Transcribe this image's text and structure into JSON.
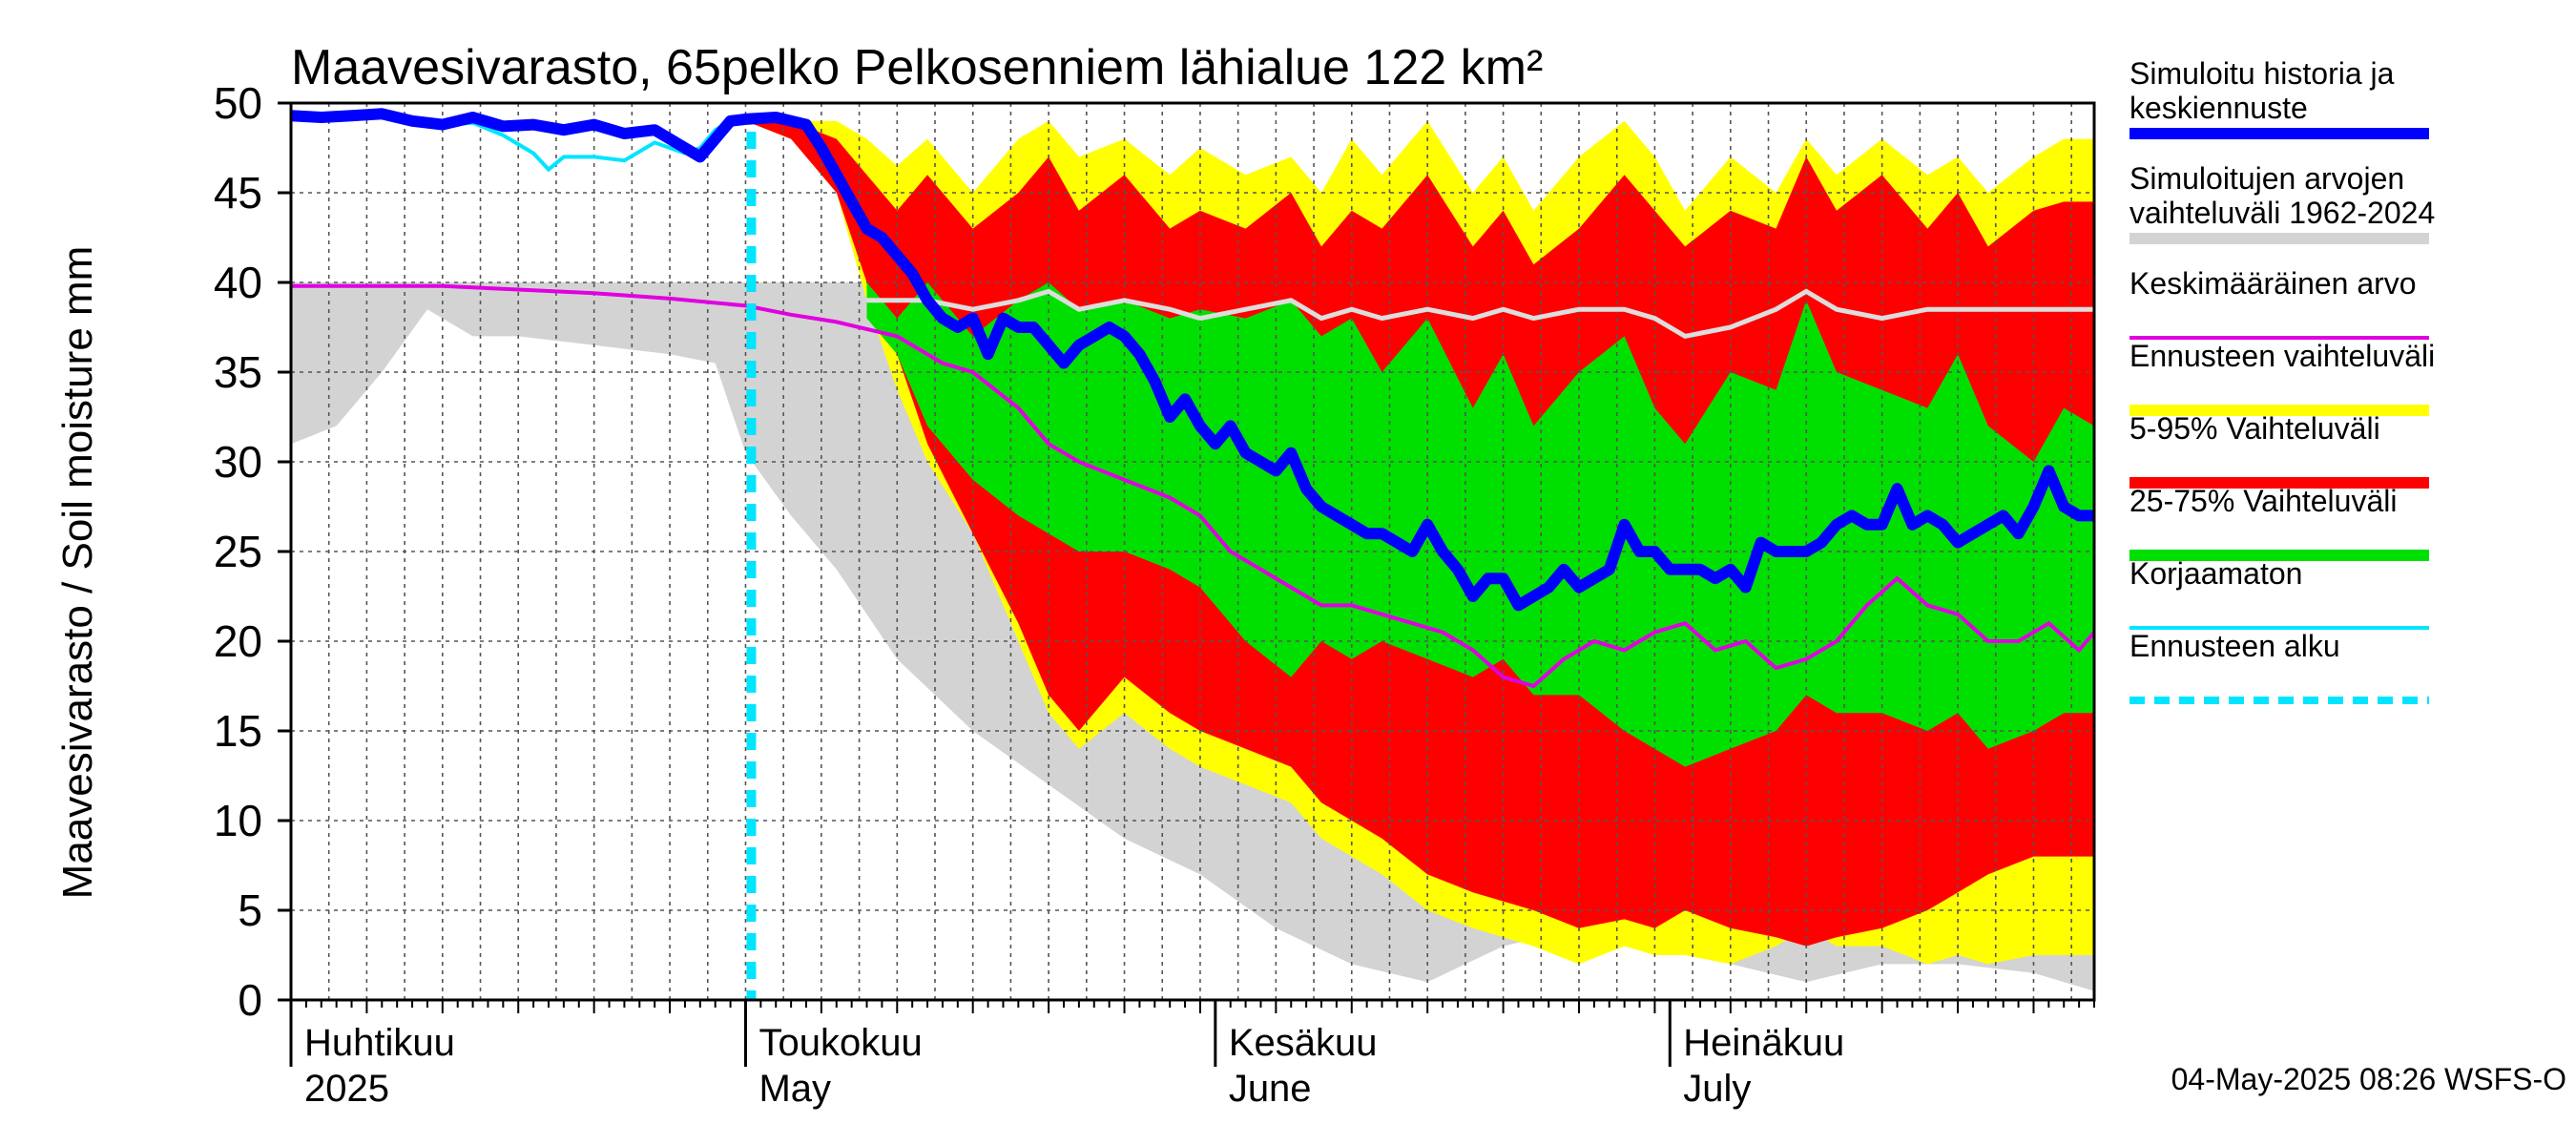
{
  "chart_data": {
    "type": "area",
    "title": "Maavesivarasto, 65pelko Pelkosenniem lähialue 122 km²",
    "ylabel": "Maavesivarasto / Soil moisture   mm",
    "ylim": [
      0,
      50
    ],
    "yticks": [
      0,
      5,
      10,
      15,
      20,
      25,
      30,
      35,
      40,
      45,
      50
    ],
    "x_start": "2025-03-31",
    "x_days": 119,
    "forecast_start_day": 30,
    "month_labels": [
      {
        "day": 0,
        "fi": "Huhtikuu",
        "en": "2025"
      },
      {
        "day": 30,
        "fi": "Toukokuu",
        "en": "May"
      },
      {
        "day": 61,
        "fi": "Kesäkuu",
        "en": "June"
      },
      {
        "day": 91,
        "fi": "Heinäkuu",
        "en": "July"
      }
    ],
    "colors": {
      "historical_range": "#d3d3d3",
      "forecast_range": "#ffff00",
      "p5_95": "#ff0000",
      "p25_75": "#00e000",
      "simulated": "#0000ff",
      "mean": "#e000e0",
      "uncorrected": "#00e5ff",
      "forecast_start": "#00e5ff",
      "median_line": "#dddddd"
    },
    "series": [
      {
        "name": "historical_range",
        "knots_day": [
          0,
          3,
          6,
          9,
          12,
          15,
          20,
          25,
          28,
          30,
          33,
          36,
          40,
          45,
          50,
          55,
          60,
          65,
          70,
          75,
          80,
          85,
          90,
          95,
          100,
          105,
          110,
          115,
          119
        ],
        "upper": [
          40,
          40,
          40,
          40,
          40,
          40,
          40,
          40,
          40,
          40,
          40,
          40,
          40,
          39.5,
          39,
          39,
          39,
          39,
          39,
          39,
          39,
          39,
          39,
          39,
          39,
          39,
          39,
          39,
          39
        ],
        "lower": [
          31,
          32,
          35,
          38.5,
          37,
          37,
          36.5,
          36,
          35.5,
          30.5,
          27,
          24,
          19,
          15,
          12,
          9,
          7,
          4,
          2,
          1,
          3,
          4,
          4,
          2,
          1,
          2,
          2,
          1.5,
          0.5
        ]
      },
      {
        "name": "forecast_range",
        "knots_day": [
          30,
          33,
          36,
          38,
          40,
          42,
          45,
          48,
          50,
          52,
          55,
          58,
          60,
          63,
          66,
          68,
          70,
          72,
          75,
          78,
          80,
          82,
          85,
          88,
          90,
          92,
          95,
          98,
          100,
          102,
          105,
          108,
          110,
          112,
          115,
          117,
          119
        ],
        "upper": [
          49,
          49,
          49,
          48,
          46.5,
          48,
          45,
          48,
          49,
          47,
          48,
          46,
          47.5,
          46,
          47,
          45,
          48,
          46,
          49,
          45,
          47,
          44,
          47,
          49,
          47,
          44,
          47,
          45,
          48,
          46,
          48,
          46,
          47,
          45,
          47,
          48,
          48
        ],
        "lower": [
          49,
          48,
          45,
          39,
          34,
          30,
          26,
          20,
          16,
          14,
          16,
          14,
          13,
          12,
          11,
          9,
          8,
          7,
          5,
          4,
          3.5,
          3,
          2,
          3,
          2.5,
          2.5,
          2,
          3,
          4,
          3,
          3,
          2,
          2.5,
          2,
          2.5,
          2.5,
          2.5
        ]
      },
      {
        "name": "p5_95",
        "knots_day": [
          30,
          33,
          36,
          38,
          40,
          42,
          45,
          48,
          50,
          52,
          55,
          58,
          60,
          63,
          66,
          68,
          70,
          72,
          75,
          78,
          80,
          82,
          85,
          88,
          90,
          92,
          95,
          98,
          100,
          102,
          105,
          108,
          110,
          112,
          115,
          117,
          119
        ],
        "upper": [
          49,
          49,
          48,
          46,
          44,
          46,
          43,
          45,
          47,
          44,
          46,
          43,
          44,
          43,
          45,
          42,
          44,
          43,
          46,
          42,
          44,
          41,
          43,
          46,
          44,
          42,
          44,
          43,
          47,
          44,
          46,
          43,
          45,
          42,
          44,
          44.5,
          44.5
        ],
        "lower": [
          49,
          48,
          45,
          40,
          36,
          31,
          26,
          21,
          17,
          15,
          18,
          16,
          15,
          14,
          13,
          11,
          10,
          9,
          7,
          6,
          5.5,
          5,
          4,
          4.5,
          4,
          5,
          4,
          3.5,
          3,
          3.5,
          4,
          5,
          6,
          7,
          8,
          8,
          8
        ]
      },
      {
        "name": "p25_75",
        "knots_day": [
          38,
          40,
          42,
          45,
          48,
          50,
          52,
          55,
          58,
          60,
          63,
          66,
          68,
          70,
          72,
          75,
          78,
          80,
          82,
          85,
          88,
          90,
          92,
          95,
          98,
          100,
          102,
          105,
          108,
          110,
          112,
          115,
          117,
          119
        ],
        "upper": [
          40,
          38,
          40,
          37,
          39,
          40,
          38.5,
          39,
          38,
          38.5,
          38,
          39,
          37,
          38,
          35,
          38,
          33,
          36,
          32,
          35,
          37,
          33,
          31,
          35,
          34,
          39,
          35,
          34,
          33,
          36,
          32,
          30,
          33,
          32
        ],
        "lower": [
          38,
          36,
          32,
          29,
          27,
          26,
          25,
          25,
          24,
          23,
          20,
          18,
          20,
          19,
          20,
          19,
          18,
          19,
          17,
          17,
          15,
          14,
          13,
          14,
          15,
          17,
          16,
          16,
          15,
          16,
          14,
          15,
          16,
          16
        ]
      },
      {
        "name": "median_line",
        "knots_day": [
          38,
          40,
          42,
          45,
          48,
          50,
          52,
          55,
          58,
          60,
          63,
          66,
          68,
          70,
          72,
          75,
          78,
          80,
          82,
          85,
          88,
          90,
          92,
          95,
          98,
          100,
          102,
          105,
          108,
          110,
          112,
          115,
          117,
          119
        ],
        "values": [
          39,
          39,
          39,
          38.5,
          39,
          39.5,
          38.5,
          39,
          38.5,
          38,
          38.5,
          39,
          38,
          38.5,
          38,
          38.5,
          38,
          38.5,
          38,
          38.5,
          38.5,
          38,
          37,
          37.5,
          38.5,
          39.5,
          38.5,
          38,
          38.5,
          38.5,
          38.5,
          38.5,
          38.5,
          38.5
        ]
      },
      {
        "name": "mean",
        "knots_day": [
          0,
          5,
          10,
          15,
          20,
          25,
          30,
          33,
          36,
          40,
          43,
          45,
          48,
          50,
          52,
          55,
          58,
          60,
          62,
          64,
          66,
          68,
          70,
          72,
          74,
          76,
          78,
          80,
          82,
          84,
          86,
          88,
          90,
          92,
          94,
          96,
          98,
          100,
          102,
          104,
          106,
          108,
          110,
          112,
          114,
          116,
          118,
          119
        ],
        "values": [
          39.8,
          39.8,
          39.8,
          39.6,
          39.4,
          39.1,
          38.7,
          38.2,
          37.8,
          37,
          35.5,
          35,
          33,
          31,
          30,
          29,
          28,
          27,
          25,
          24,
          23,
          22,
          22,
          21.5,
          21,
          20.5,
          19.5,
          18,
          17.5,
          19,
          20,
          19.5,
          20.5,
          21,
          19.5,
          20,
          18.5,
          19,
          20,
          22,
          23.5,
          22,
          21.5,
          20,
          20,
          21,
          19.5,
          20.5
        ]
      },
      {
        "name": "simulated",
        "knots_day": [
          0,
          2,
          4,
          6,
          8,
          10,
          12,
          14,
          16,
          18,
          20,
          22,
          24,
          26,
          27,
          28,
          29,
          30,
          32,
          34,
          35,
          36,
          37,
          38,
          39,
          40,
          41,
          42,
          43,
          44,
          45,
          46,
          47,
          48,
          49,
          50,
          51,
          52,
          53,
          54,
          55,
          56,
          57,
          58,
          59,
          60,
          61,
          62,
          63,
          64,
          65,
          66,
          67,
          68,
          69,
          70,
          71,
          72,
          73,
          74,
          75,
          76,
          77,
          78,
          79,
          80,
          81,
          82,
          83,
          84,
          85,
          86,
          87,
          88,
          89,
          90,
          91,
          92,
          93,
          94,
          95,
          96,
          97,
          98,
          99,
          100,
          101,
          102,
          103,
          104,
          105,
          106,
          107,
          108,
          109,
          110,
          111,
          112,
          113,
          114,
          115,
          116,
          117,
          118,
          119
        ],
        "values": [
          49.3,
          49.2,
          49.3,
          49.4,
          49,
          48.8,
          49.2,
          48.7,
          48.8,
          48.5,
          48.8,
          48.3,
          48.5,
          47.5,
          47,
          48,
          49,
          49.1,
          49.2,
          48.8,
          47.5,
          46,
          44.5,
          43,
          42.5,
          41.5,
          40.5,
          39,
          38,
          37.5,
          38,
          36,
          38,
          37.5,
          37.5,
          36.5,
          35.5,
          36.5,
          37,
          37.5,
          37,
          36,
          34.5,
          32.5,
          33.5,
          32,
          31,
          32,
          30.5,
          30,
          29.5,
          30.5,
          28.5,
          27.5,
          27,
          26.5,
          26,
          26,
          25.5,
          25,
          26.5,
          25,
          24,
          22.5,
          23.5,
          23.5,
          22,
          22.5,
          23,
          24,
          23,
          23.5,
          24,
          26.5,
          25,
          25,
          24,
          24,
          24,
          23.5,
          24,
          23,
          25.5,
          25,
          25,
          25,
          25.5,
          26.5,
          27,
          26.5,
          26.5,
          28.5,
          26.5,
          27,
          26.5,
          25.5,
          26,
          26.5,
          27,
          26,
          27.5,
          29.5,
          27.5,
          27,
          27
        ]
      },
      {
        "name": "uncorrected",
        "knots_day": [
          0,
          2,
          4,
          6,
          8,
          10,
          12,
          14,
          16,
          17,
          18,
          20,
          22,
          24,
          26,
          27,
          28,
          29,
          30
        ],
        "values": [
          49.2,
          49.2,
          49.3,
          49.4,
          49.1,
          48.8,
          48.9,
          48.2,
          47.2,
          46.3,
          47,
          47,
          46.8,
          47.8,
          47.2,
          47.5,
          48.5,
          49,
          49.1
        ]
      }
    ],
    "legend": [
      {
        "key": "simulated",
        "label1": "Simuloitu historia ja",
        "label2": "keskiennuste"
      },
      {
        "key": "historical_range",
        "label1": "Simuloitujen arvojen",
        "label2": "vaihteluväli 1962-2024"
      },
      {
        "key": "mean",
        "label1": "Keskimääräinen arvo",
        "label2": ""
      },
      {
        "key": "forecast_range",
        "label1": "Ennusteen vaihteluväli",
        "label2": ""
      },
      {
        "key": "p5_95",
        "label1": "5-95% Vaihteluväli",
        "label2": ""
      },
      {
        "key": "p25_75",
        "label1": "25-75% Vaihteluväli",
        "label2": ""
      },
      {
        "key": "uncorrected",
        "label1": "Korjaamaton",
        "label2": ""
      },
      {
        "key": "forecast_start",
        "label1": "Ennusteen alku",
        "label2": ""
      }
    ],
    "timestamp": "04-May-2025 08:26 WSFS-O"
  }
}
